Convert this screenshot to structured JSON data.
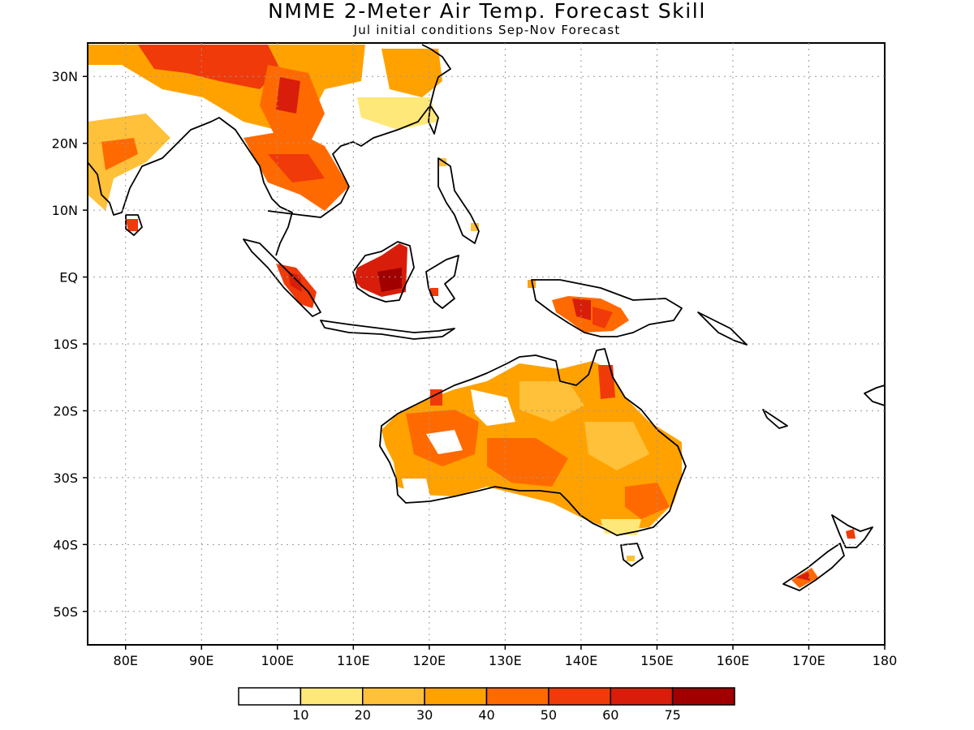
{
  "title": "NMME 2-Meter Air Temp. Forecast Skill",
  "subtitle": "Jul initial conditions  Sep-Nov Forecast",
  "map": {
    "lon_range": [
      75,
      180
    ],
    "lat_range": [
      -55,
      35
    ],
    "grid": "dotted",
    "lat_ticks": [
      {
        "value": 30,
        "label": "30N"
      },
      {
        "value": 20,
        "label": "20N"
      },
      {
        "value": 10,
        "label": "10N"
      },
      {
        "value": 0,
        "label": "EQ"
      },
      {
        "value": -10,
        "label": "10S"
      },
      {
        "value": -20,
        "label": "20S"
      },
      {
        "value": -30,
        "label": "30S"
      },
      {
        "value": -40,
        "label": "40S"
      },
      {
        "value": -50,
        "label": "50S"
      }
    ],
    "lon_ticks": [
      {
        "value": 80,
        "label": "80E"
      },
      {
        "value": 90,
        "label": "90E"
      },
      {
        "value": 100,
        "label": "100E"
      },
      {
        "value": 110,
        "label": "110E"
      },
      {
        "value": 120,
        "label": "120E"
      },
      {
        "value": 130,
        "label": "130E"
      },
      {
        "value": 140,
        "label": "140E"
      },
      {
        "value": 150,
        "label": "150E"
      },
      {
        "value": 160,
        "label": "160E"
      },
      {
        "value": 170,
        "label": "170E"
      },
      {
        "value": 180,
        "label": "180"
      }
    ]
  },
  "colorbar": {
    "colors": [
      "#ffffff",
      "#ffe87a",
      "#ffc03a",
      "#ffa200",
      "#ff6a00",
      "#f03a0a",
      "#d81e0a",
      "#a00000"
    ],
    "labels": [
      "10",
      "20",
      "30",
      "40",
      "50",
      "60",
      "75"
    ]
  }
}
